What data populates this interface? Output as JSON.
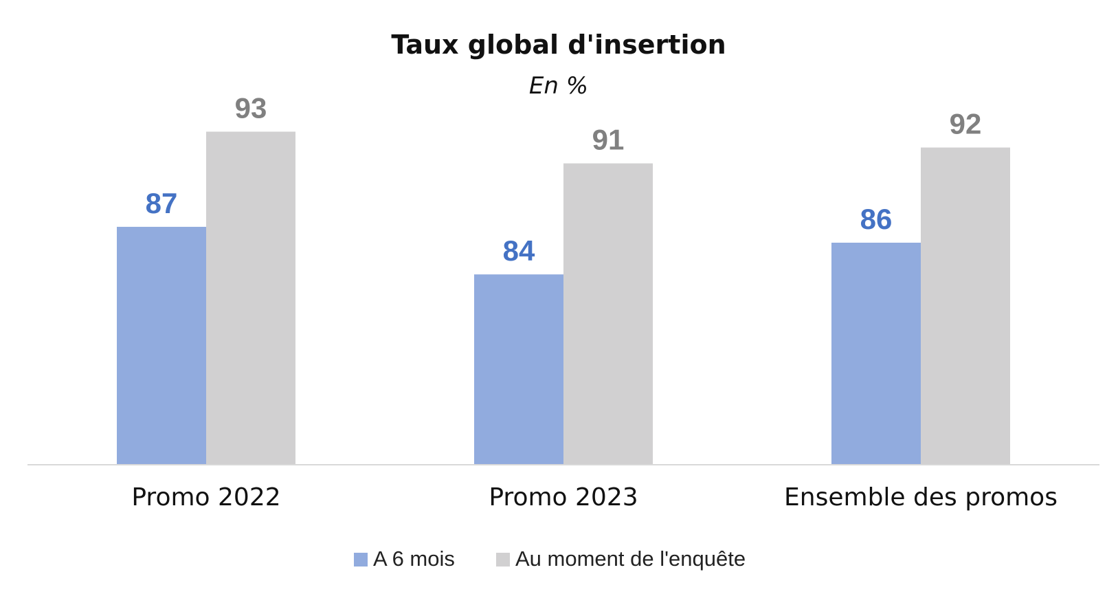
{
  "chart_data": {
    "type": "bar",
    "title": "Taux global d'insertion",
    "subtitle": "En %",
    "categories": [
      "Promo 2022",
      "Promo 2023",
      "Ensemble des promos"
    ],
    "series": [
      {
        "name": "A 6 mois",
        "values": [
          87,
          84,
          86
        ],
        "color": "#91abde",
        "label_color": "#4472c4"
      },
      {
        "name": "Au moment de l'enquête",
        "values": [
          93,
          91,
          92
        ],
        "color": "#d1d0d1",
        "label_color": "#808080"
      }
    ],
    "ylim": [
      72,
      100
    ],
    "grid": false,
    "legend_position": "bottom",
    "axis_color": "#d9d9d9"
  }
}
